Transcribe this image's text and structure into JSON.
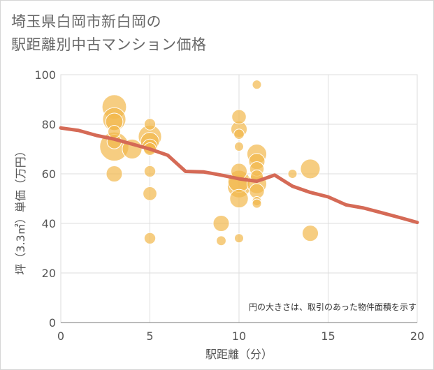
{
  "chart_data": {
    "type": "scatter",
    "title": "埼玉県白岡市新白岡の駅距離別中古マンション価格",
    "title_lines": [
      "埼玉県白岡市新白岡の",
      "駅距離別中古マンション価格"
    ],
    "xlabel": "駅距離（分）",
    "ylabel": "坪（3.3㎡）単価（万円）",
    "xlim": [
      0,
      20
    ],
    "ylim": [
      0,
      100
    ],
    "x_ticks": [
      0,
      5,
      10,
      15,
      20
    ],
    "y_ticks": [
      0,
      20,
      40,
      60,
      80,
      100
    ],
    "grid": true,
    "note": "円の大きさは、取引のあった物件面積を示す",
    "bubble_color": "#f2b84b",
    "line_color": "#d56a56",
    "series": [
      {
        "type": "bubble",
        "points": [
          {
            "x": 3,
            "y": 87,
            "size": 3.2
          },
          {
            "x": 3,
            "y": 82,
            "size": 3.0
          },
          {
            "x": 3,
            "y": 81,
            "size": 2.0
          },
          {
            "x": 3,
            "y": 77,
            "size": 1.2
          },
          {
            "x": 3,
            "y": 73,
            "size": 1.5
          },
          {
            "x": 3,
            "y": 71,
            "size": 4.0
          },
          {
            "x": 3,
            "y": 60,
            "size": 1.8
          },
          {
            "x": 4,
            "y": 70,
            "size": 2.4
          },
          {
            "x": 5,
            "y": 80,
            "size": 1.0
          },
          {
            "x": 5,
            "y": 75,
            "size": 3.0
          },
          {
            "x": 5,
            "y": 73,
            "size": 2.2
          },
          {
            "x": 5,
            "y": 71,
            "size": 1.6
          },
          {
            "x": 5,
            "y": 70,
            "size": 1.2
          },
          {
            "x": 5,
            "y": 61,
            "size": 1.0
          },
          {
            "x": 5,
            "y": 52,
            "size": 1.4
          },
          {
            "x": 5,
            "y": 34,
            "size": 1.0
          },
          {
            "x": 9,
            "y": 40,
            "size": 1.8
          },
          {
            "x": 9,
            "y": 33,
            "size": 0.7
          },
          {
            "x": 10,
            "y": 83,
            "size": 1.5
          },
          {
            "x": 10,
            "y": 78,
            "size": 1.8
          },
          {
            "x": 10,
            "y": 76,
            "size": 0.8
          },
          {
            "x": 10,
            "y": 71,
            "size": 0.6
          },
          {
            "x": 10,
            "y": 61,
            "size": 1.8
          },
          {
            "x": 10,
            "y": 57,
            "size": 2.8
          },
          {
            "x": 10,
            "y": 55,
            "size": 3.0
          },
          {
            "x": 10,
            "y": 50,
            "size": 2.2
          },
          {
            "x": 10,
            "y": 34,
            "size": 0.6
          },
          {
            "x": 11,
            "y": 96,
            "size": 0.6
          },
          {
            "x": 11,
            "y": 68,
            "size": 2.4
          },
          {
            "x": 11,
            "y": 65,
            "size": 1.8
          },
          {
            "x": 11,
            "y": 62,
            "size": 1.5
          },
          {
            "x": 11,
            "y": 59,
            "size": 1.2
          },
          {
            "x": 11,
            "y": 56,
            "size": 2.4
          },
          {
            "x": 11,
            "y": 53,
            "size": 1.6
          },
          {
            "x": 11,
            "y": 49,
            "size": 0.6
          },
          {
            "x": 11,
            "y": 48,
            "size": 0.6
          },
          {
            "x": 13,
            "y": 60,
            "size": 0.6
          },
          {
            "x": 14,
            "y": 62,
            "size": 2.4
          },
          {
            "x": 14,
            "y": 36,
            "size": 1.8
          }
        ]
      },
      {
        "type": "line",
        "x": [
          0,
          1,
          2,
          3,
          4,
          5,
          6,
          7,
          8,
          9,
          10,
          11,
          12,
          13,
          14,
          15,
          16,
          17,
          18,
          19,
          20
        ],
        "y": [
          78.5,
          77.5,
          75.5,
          74,
          72,
          70,
          67.5,
          61,
          60.8,
          59.5,
          58,
          57,
          59.5,
          55,
          52.5,
          50.7,
          47.5,
          46.2,
          44.3,
          42.4,
          40.4
        ]
      }
    ]
  }
}
